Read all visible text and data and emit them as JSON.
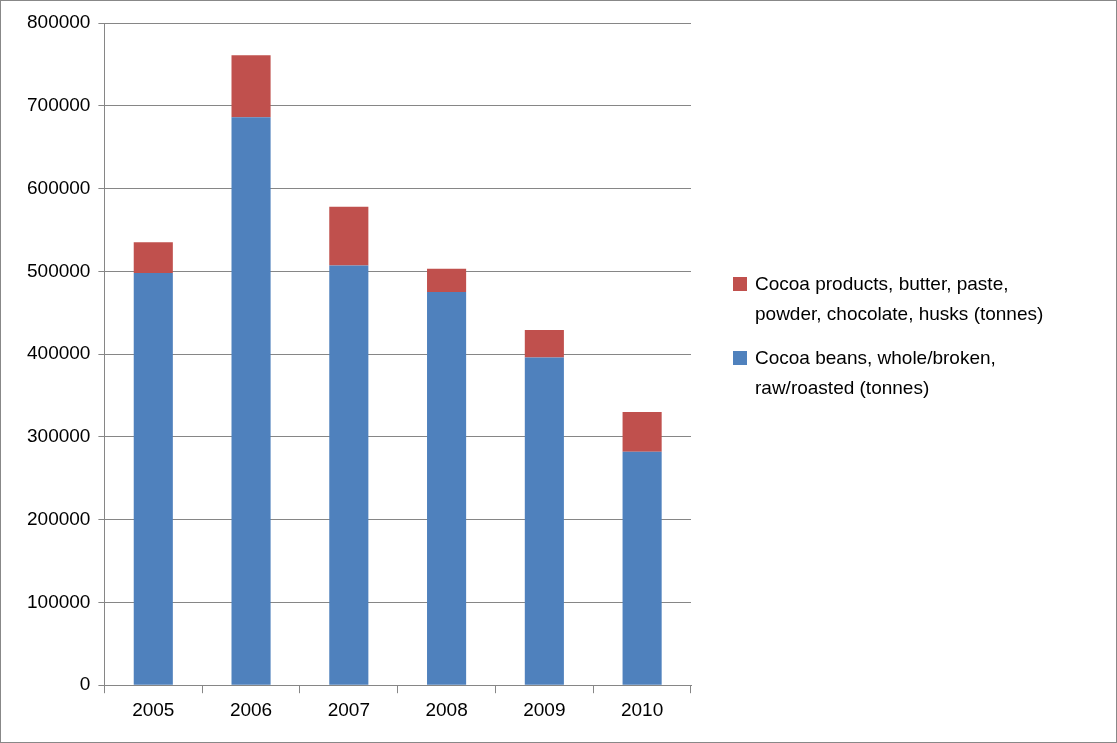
{
  "chart_data": {
    "type": "bar",
    "stacked": true,
    "categories": [
      "2005",
      "2006",
      "2007",
      "2008",
      "2009",
      "2010"
    ],
    "series": [
      {
        "name": "Cocoa beans, whole/broken, raw/roasted (tonnes)",
        "color": "#4f81bd",
        "values": [
          498000,
          686000,
          507000,
          475000,
          396000,
          282000
        ]
      },
      {
        "name": "Cocoa products, butter, paste, powder, chocolate, husks (tonnes)",
        "color": "#c0504d",
        "values": [
          37000,
          75000,
          71000,
          28000,
          33000,
          48000
        ]
      }
    ],
    "ylim": [
      0,
      800000
    ],
    "yticks": [
      0,
      100000,
      200000,
      300000,
      400000,
      500000,
      600000,
      700000,
      800000
    ],
    "grid": "y",
    "legend": "right"
  }
}
